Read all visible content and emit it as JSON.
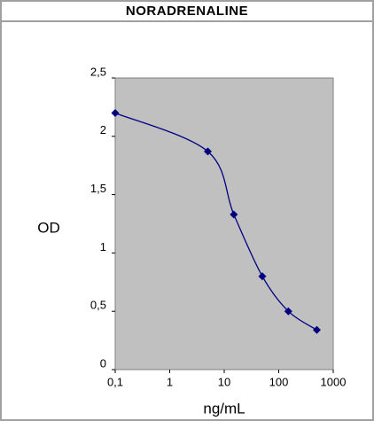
{
  "chart_data": {
    "type": "line",
    "title": "NORADRENALINE",
    "xlabel": "ng/mL",
    "ylabel": "OD",
    "x": [
      0.1,
      5,
      15,
      50,
      150,
      500
    ],
    "series": [
      {
        "name": "OD",
        "color": "#000080",
        "values": [
          2.2,
          1.87,
          1.33,
          0.8,
          0.5,
          0.34
        ]
      }
    ],
    "xscale": "log",
    "xlim": [
      0.1,
      1000
    ],
    "xticks": [
      {
        "value": 0.1,
        "label": "0,1"
      },
      1,
      10,
      100,
      1000
    ],
    "ylim": [
      0,
      2.5
    ],
    "yticks": [
      0,
      {
        "value": 0.5,
        "label": "0,5"
      },
      1,
      {
        "value": 1.5,
        "label": "1,5"
      },
      2,
      {
        "value": 2.5,
        "label": "2,5"
      }
    ],
    "plot_background": "#c0c0c0"
  }
}
